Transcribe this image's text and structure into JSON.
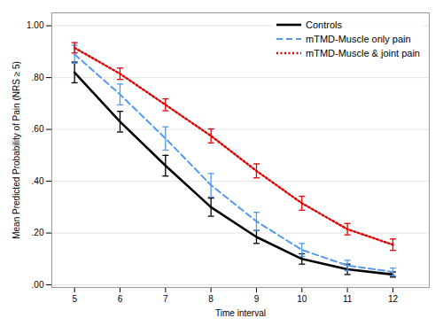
{
  "chart_data": {
    "type": "line",
    "xlabel": "Time interval",
    "ylabel": "Mean Predicted Probability of Pain (NRS ≥ 5)",
    "x": [
      5,
      6,
      7,
      8,
      9,
      10,
      11,
      12
    ],
    "series": [
      {
        "name": "Controls",
        "color": "#000000",
        "line_style": "solid",
        "values": [
          0.82,
          0.63,
          0.46,
          0.3,
          0.185,
          0.1,
          0.06,
          0.04
        ],
        "ci_lower": [
          0.78,
          0.59,
          0.42,
          0.265,
          0.16,
          0.08,
          0.04,
          0.03
        ],
        "ci_upper": [
          0.86,
          0.67,
          0.5,
          0.335,
          0.21,
          0.12,
          0.08,
          0.05
        ]
      },
      {
        "name": "mTMD-Muscle only pain",
        "color": "#5599ee",
        "line_style": "dashed",
        "values": [
          0.89,
          0.735,
          0.565,
          0.385,
          0.245,
          0.135,
          0.075,
          0.05
        ],
        "ci_lower": [
          0.855,
          0.695,
          0.52,
          0.34,
          0.21,
          0.11,
          0.055,
          0.035
        ],
        "ci_upper": [
          0.925,
          0.775,
          0.61,
          0.43,
          0.28,
          0.16,
          0.095,
          0.065
        ]
      },
      {
        "name": "mTMD-Muscle & joint pain",
        "color": "#dd0000",
        "line_style": "dotted",
        "values": [
          0.915,
          0.815,
          0.695,
          0.575,
          0.44,
          0.315,
          0.215,
          0.155
        ],
        "ci_lower": [
          0.895,
          0.793,
          0.672,
          0.548,
          0.413,
          0.288,
          0.193,
          0.133
        ],
        "ci_upper": [
          0.935,
          0.837,
          0.718,
          0.602,
          0.467,
          0.342,
          0.237,
          0.177
        ]
      }
    ],
    "xlim": [
      4.5,
      12.8
    ],
    "xticks": [
      5,
      6,
      7,
      8,
      9,
      10,
      11,
      12
    ],
    "ylim": [
      -0.01,
      1.05
    ],
    "yticks": [
      {
        "value": 0.0,
        "label": ".00"
      },
      {
        "value": 0.2,
        "label": ".20"
      },
      {
        "value": 0.4,
        "label": ".40"
      },
      {
        "value": 0.6,
        "label": ".60"
      },
      {
        "value": 0.8,
        "label": ".80"
      },
      {
        "value": 1.0,
        "label": "1.00"
      }
    ],
    "grid": "y",
    "legend": "upper right"
  }
}
